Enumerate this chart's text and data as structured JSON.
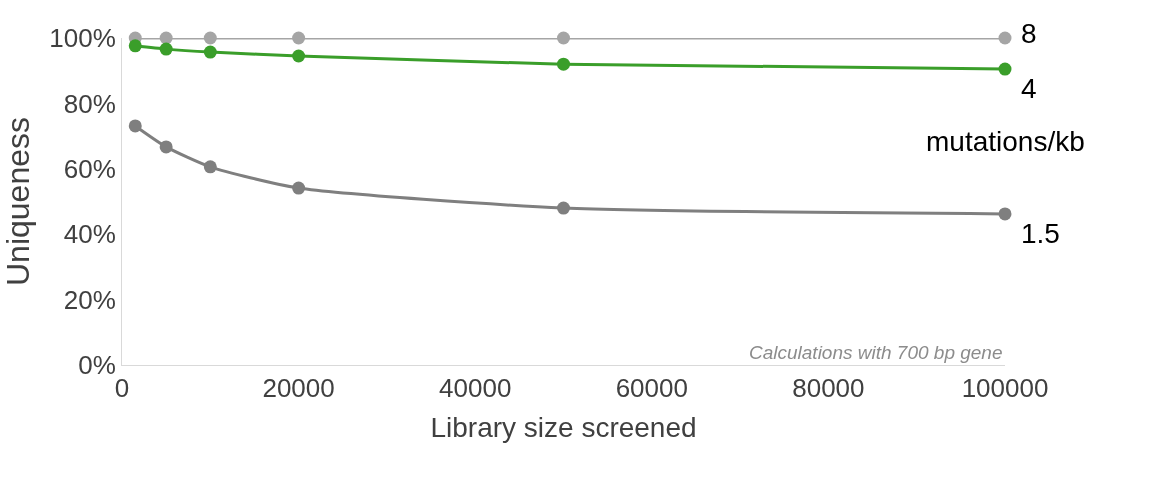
{
  "chart_data": {
    "type": "line",
    "x": [
      1500,
      5000,
      10000,
      20000,
      50000,
      100000
    ],
    "series": [
      {
        "name": "8",
        "color": "#a5a5a5",
        "values": [
          100,
          100,
          100,
          100,
          100,
          100
        ]
      },
      {
        "name": "4",
        "color": "#3a9e2a",
        "values": [
          97.6,
          96.6,
          95.7,
          94.5,
          92,
          90.5
        ]
      },
      {
        "name": "1.5",
        "color": "#7f7f7f",
        "values": [
          73.1,
          66.7,
          60.6,
          54.1,
          48.0,
          46.2
        ]
      }
    ],
    "legend_title": "mutations/kb",
    "xlabel": "Library size screened",
    "ylabel": "Uniqueness",
    "xlim": [
      0,
      100000
    ],
    "xticks": [
      0,
      20000,
      40000,
      60000,
      80000,
      100000
    ],
    "ylim": [
      0,
      100
    ],
    "yticks": [
      {
        "value": 0,
        "label": "0%"
      },
      {
        "value": 20,
        "label": "20%"
      },
      {
        "value": 40,
        "label": "40%"
      },
      {
        "value": 60,
        "label": "60%"
      },
      {
        "value": 80,
        "label": "80%"
      },
      {
        "value": 100,
        "label": "100%"
      }
    ],
    "annotations": [
      "Calculations with 700 bp gene"
    ],
    "marker": "circle",
    "line_style": "solid",
    "legend": false
  }
}
